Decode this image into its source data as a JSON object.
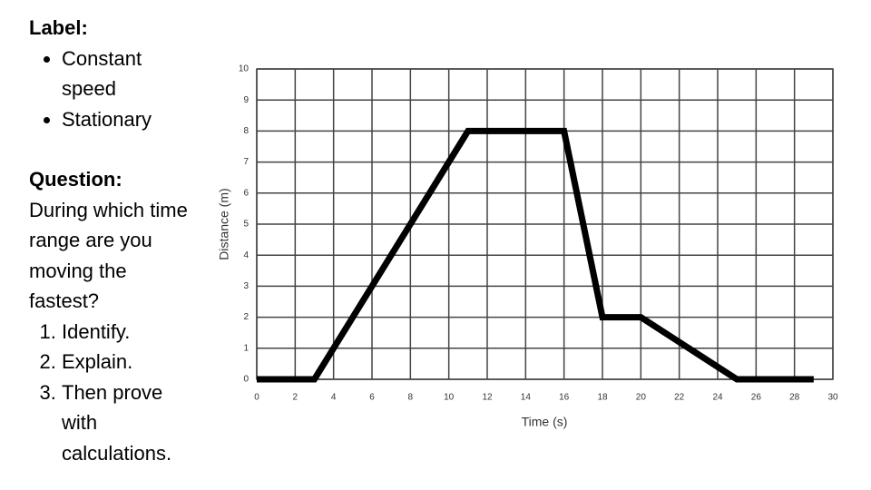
{
  "slide": {
    "label_heading": "Label:",
    "labels": [
      "Constant speed",
      "Stationary"
    ],
    "question_heading": "Question:",
    "question": "During which time range are you moving the fastest?",
    "steps": [
      "Identify.",
      "Explain.",
      "Then prove with calculations."
    ]
  },
  "chart_data": {
    "type": "line",
    "x_label": "Time (s)",
    "y_label": "Distance (m)",
    "x": [
      0,
      3,
      11,
      16,
      18,
      20,
      25,
      29
    ],
    "values": [
      0,
      0,
      8,
      8,
      2,
      2,
      0,
      0
    ],
    "color": "#000000",
    "xlim": [
      0,
      30
    ],
    "xticks": [
      0,
      2,
      4,
      6,
      8,
      10,
      12,
      14,
      16,
      18,
      20,
      22,
      24,
      26,
      28,
      30
    ],
    "ylim": [
      0,
      10
    ],
    "yticks": [
      0,
      1,
      2,
      3,
      4,
      5,
      6,
      7,
      8,
      9,
      10
    ],
    "grid": true
  }
}
